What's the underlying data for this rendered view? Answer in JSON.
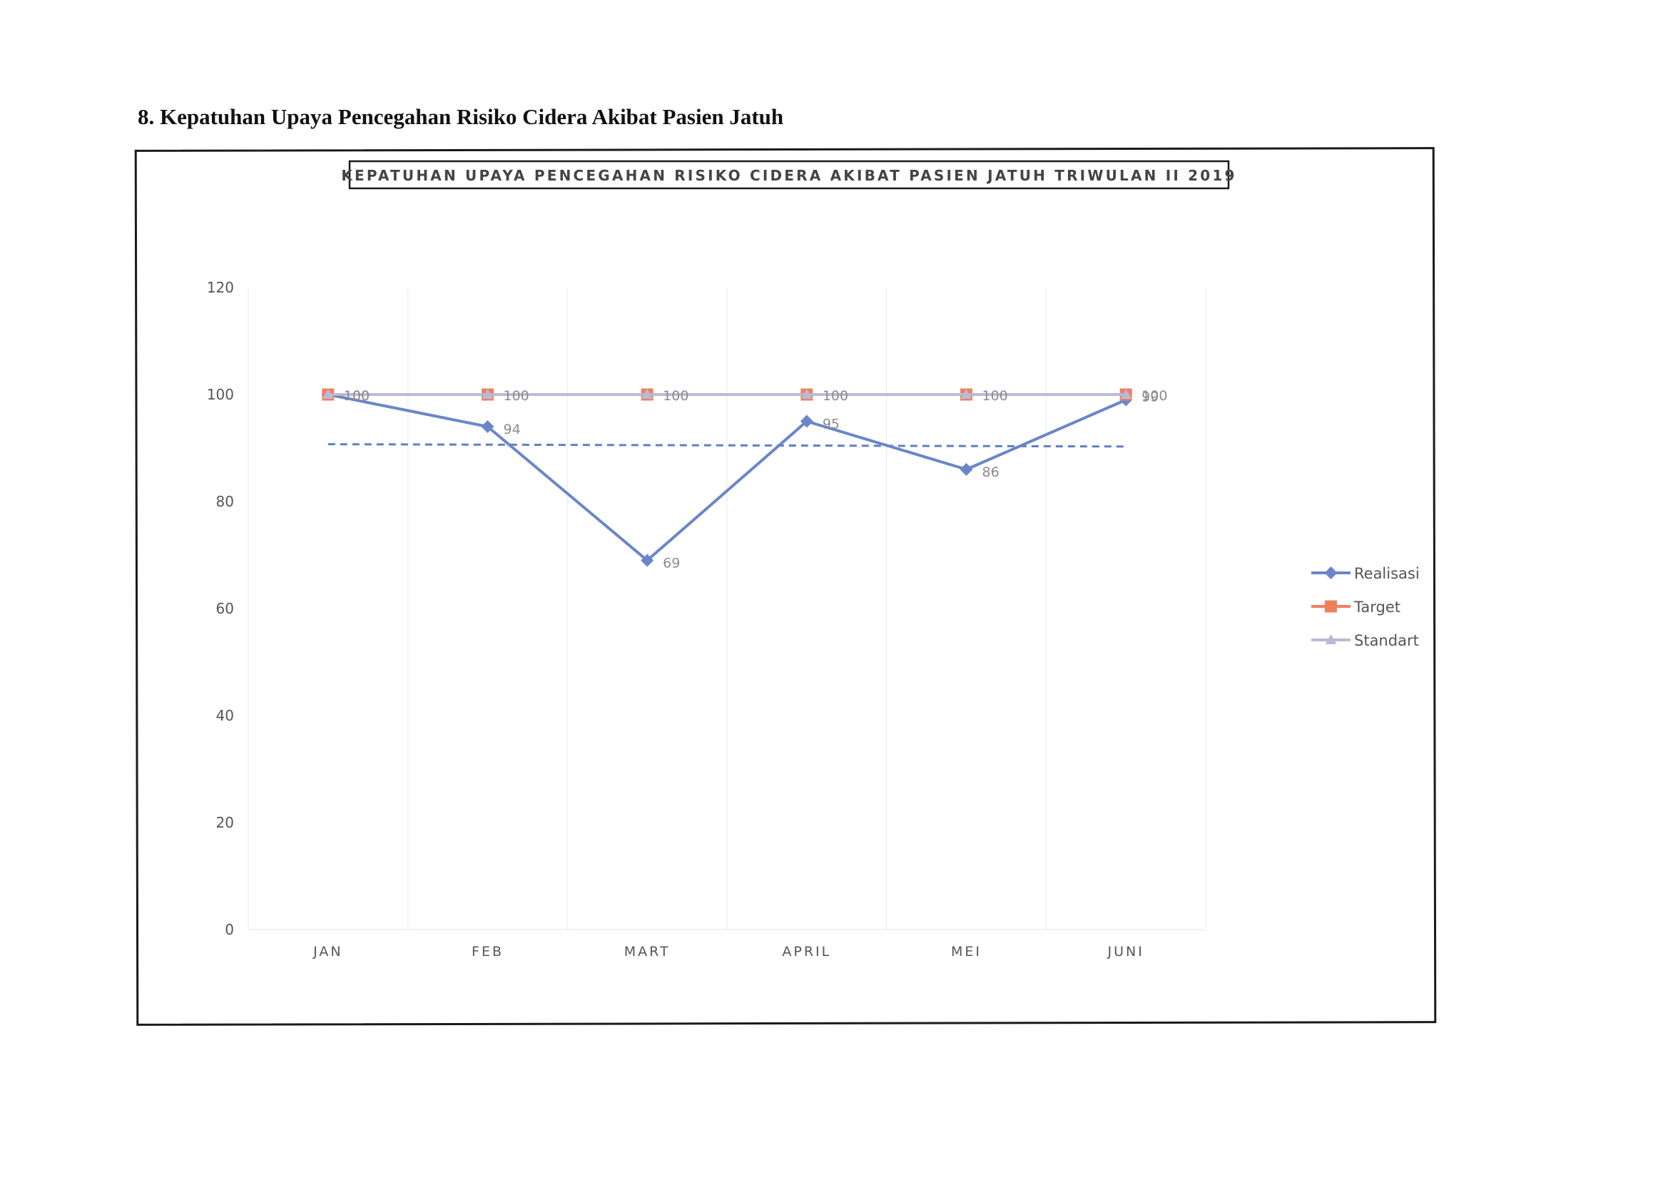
{
  "heading": "8. Kepatuhan Upaya Pencegahan Risiko Cidera Akibat Pasien Jatuh",
  "colors": {
    "realisasi": "#6a86c8",
    "target": "#ee8060",
    "standart": "#b9b9d9",
    "trendline": "#5f7fc6",
    "axis_text": "#555555",
    "data_label": "#8c8c8c"
  },
  "chart_data": {
    "type": "line",
    "title": "KEPATUHAN UPAYA PENCEGAHAN RISIKO CIDERA AKIBAT PASIEN JATUH TRIWULAN II 2019",
    "xlabel": "",
    "ylabel": "",
    "categories": [
      "JAN",
      "FEB",
      "MART",
      "APRIL",
      "MEI",
      "JUNI"
    ],
    "ylim": [
      0,
      120
    ],
    "yticks": [
      0,
      20,
      40,
      60,
      80,
      100,
      120
    ],
    "grid": "vertical",
    "legend_position": "right",
    "series": [
      {
        "name": "Realisasi",
        "values": [
          100,
          94,
          69,
          95,
          86,
          99
        ],
        "marker": "diamond",
        "labels": [
          "100",
          "94",
          "69",
          "95",
          "86",
          "99"
        ]
      },
      {
        "name": "Target",
        "values": [
          100,
          100,
          100,
          100,
          100,
          100
        ],
        "marker": "square",
        "labels": []
      },
      {
        "name": "Standart",
        "values": [
          100,
          100,
          100,
          100,
          100,
          100
        ],
        "marker": "triangle",
        "labels": [
          "100",
          "100",
          "100",
          "100",
          "100",
          "100"
        ]
      }
    ],
    "trendline": {
      "series": "Realisasi",
      "style": "dashed"
    }
  }
}
